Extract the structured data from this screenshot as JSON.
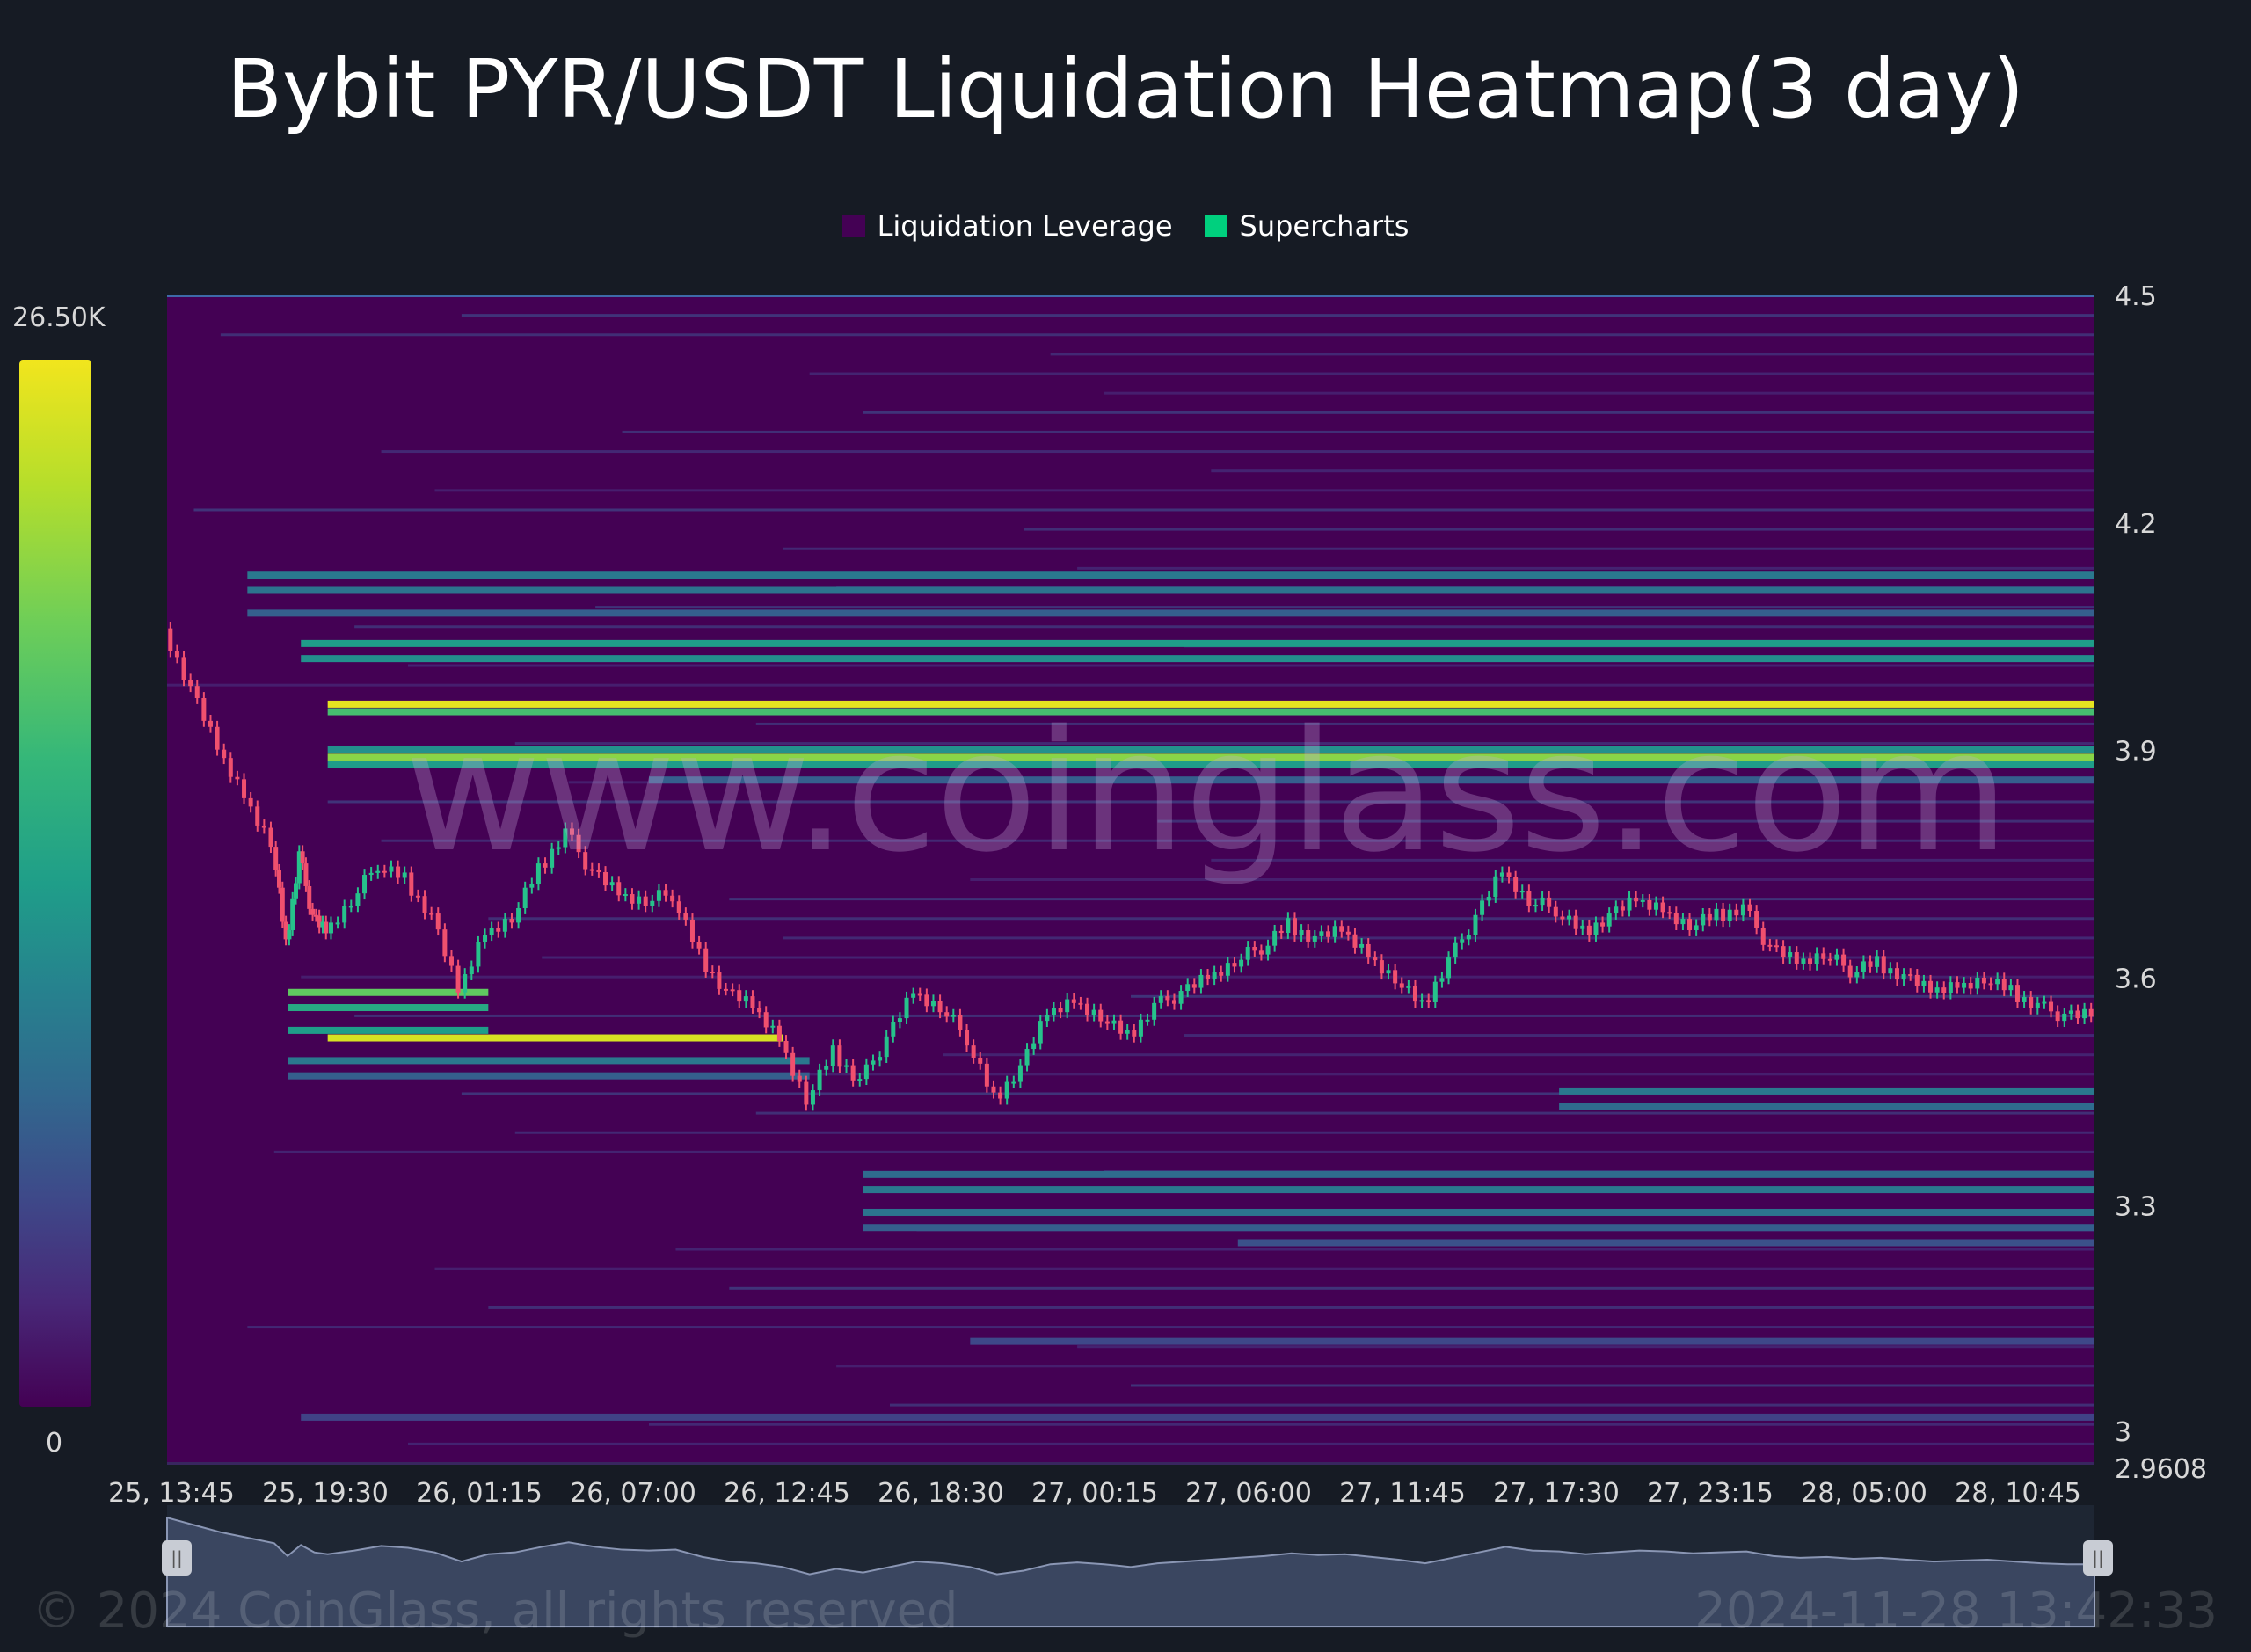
{
  "title": "Bybit PYR/USDT Liquidation Heatmap(3 day)",
  "legend": [
    {
      "label": "Liquidation Leverage",
      "color": "#440154"
    },
    {
      "label": "Supercharts",
      "color": "#00d07e"
    }
  ],
  "color_scale": {
    "max_label": "26.50K",
    "min_label": "0",
    "colormap": "viridis"
  },
  "watermark": "www.coinglass.com",
  "footer": {
    "copyright": "© 2024 CoinGlass, all rights reserved",
    "timestamp": "2024-11-28 13:42:33"
  },
  "chart_data": {
    "type": "heatmap",
    "title": "Bybit PYR/USDT Liquidation Heatmap(3 day)",
    "ylim": [
      2.9608,
      4.5
    ],
    "y_ticks": [
      "4.5",
      "4.2",
      "3.9",
      "3.6",
      "3.3",
      "3",
      "2.9608"
    ],
    "x_ticks": [
      "25, 13:45",
      "25, 19:30",
      "26, 01:15",
      "26, 07:00",
      "26, 12:45",
      "26, 18:30",
      "27, 00:15",
      "27, 06:00",
      "27, 11:45",
      "27, 17:30",
      "27, 23:15",
      "28, 05:00",
      "28, 10:45"
    ],
    "x_range_hours": [
      0,
      72
    ],
    "price_path": [
      [
        0,
        4.06
      ],
      [
        1,
        3.98
      ],
      [
        2,
        3.9
      ],
      [
        3,
        3.84
      ],
      [
        4,
        3.78
      ],
      [
        4.5,
        3.64
      ],
      [
        5,
        3.76
      ],
      [
        5.5,
        3.68
      ],
      [
        6,
        3.66
      ],
      [
        7,
        3.7
      ],
      [
        8,
        3.75
      ],
      [
        9,
        3.73
      ],
      [
        10,
        3.68
      ],
      [
        11,
        3.58
      ],
      [
        12,
        3.66
      ],
      [
        13,
        3.68
      ],
      [
        14,
        3.74
      ],
      [
        15,
        3.79
      ],
      [
        16,
        3.74
      ],
      [
        17,
        3.71
      ],
      [
        18,
        3.7
      ],
      [
        19,
        3.71
      ],
      [
        20,
        3.63
      ],
      [
        21,
        3.58
      ],
      [
        22,
        3.56
      ],
      [
        23,
        3.52
      ],
      [
        24,
        3.44
      ],
      [
        25,
        3.5
      ],
      [
        26,
        3.46
      ],
      [
        27,
        3.52
      ],
      [
        28,
        3.58
      ],
      [
        29,
        3.56
      ],
      [
        30,
        3.52
      ],
      [
        31,
        3.44
      ],
      [
        32,
        3.48
      ],
      [
        33,
        3.55
      ],
      [
        34,
        3.57
      ],
      [
        35,
        3.55
      ],
      [
        36,
        3.52
      ],
      [
        37,
        3.56
      ],
      [
        38,
        3.58
      ],
      [
        39,
        3.6
      ],
      [
        40,
        3.62
      ],
      [
        41,
        3.64
      ],
      [
        42,
        3.67
      ],
      [
        43,
        3.65
      ],
      [
        44,
        3.66
      ],
      [
        45,
        3.63
      ],
      [
        46,
        3.6
      ],
      [
        47,
        3.56
      ],
      [
        48,
        3.62
      ],
      [
        49,
        3.68
      ],
      [
        50,
        3.74
      ],
      [
        51,
        3.7
      ],
      [
        52,
        3.69
      ],
      [
        53,
        3.66
      ],
      [
        54,
        3.68
      ],
      [
        55,
        3.7
      ],
      [
        56,
        3.69
      ],
      [
        57,
        3.67
      ],
      [
        58,
        3.68
      ],
      [
        59,
        3.69
      ],
      [
        60,
        3.64
      ],
      [
        61,
        3.62
      ],
      [
        62,
        3.63
      ],
      [
        63,
        3.61
      ],
      [
        64,
        3.62
      ],
      [
        65,
        3.6
      ],
      [
        66,
        3.58
      ],
      [
        67,
        3.59
      ],
      [
        68,
        3.6
      ],
      [
        69,
        3.58
      ],
      [
        70,
        3.56
      ],
      [
        71,
        3.55
      ],
      [
        72,
        3.55
      ]
    ],
    "liquidation_bands": [
      {
        "price": 4.13,
        "start_hour": 3,
        "intensity": 0.4
      },
      {
        "price": 4.11,
        "start_hour": 3,
        "intensity": 0.38
      },
      {
        "price": 4.08,
        "start_hour": 3,
        "intensity": 0.3
      },
      {
        "price": 4.04,
        "start_hour": 5,
        "intensity": 0.55
      },
      {
        "price": 4.02,
        "start_hour": 5,
        "intensity": 0.5
      },
      {
        "price": 3.96,
        "start_hour": 6,
        "intensity": 0.98
      },
      {
        "price": 3.95,
        "start_hour": 6,
        "intensity": 0.7
      },
      {
        "price": 3.9,
        "start_hour": 6,
        "intensity": 0.5
      },
      {
        "price": 3.89,
        "start_hour": 6,
        "intensity": 0.82
      },
      {
        "price": 3.88,
        "start_hour": 6,
        "intensity": 0.55
      },
      {
        "price": 3.86,
        "start_hour": 18,
        "intensity": 0.3
      },
      {
        "price": 3.58,
        "start_hour": 4.5,
        "end_hour": 12,
        "intensity": 0.75
      },
      {
        "price": 3.56,
        "start_hour": 4.5,
        "end_hour": 12,
        "intensity": 0.6
      },
      {
        "price": 3.52,
        "start_hour": 6,
        "end_hour": 23,
        "intensity": 0.95
      },
      {
        "price": 3.53,
        "start_hour": 4.5,
        "end_hour": 12,
        "intensity": 0.55
      },
      {
        "price": 3.49,
        "start_hour": 4.5,
        "end_hour": 24,
        "intensity": 0.4
      },
      {
        "price": 3.47,
        "start_hour": 4.5,
        "end_hour": 24,
        "intensity": 0.3
      },
      {
        "price": 3.45,
        "start_hour": 52,
        "intensity": 0.4
      },
      {
        "price": 3.43,
        "start_hour": 52,
        "intensity": 0.35
      },
      {
        "price": 3.34,
        "start_hour": 26,
        "intensity": 0.35
      },
      {
        "price": 3.32,
        "start_hour": 26,
        "intensity": 0.4
      },
      {
        "price": 3.29,
        "start_hour": 26,
        "intensity": 0.38
      },
      {
        "price": 3.27,
        "start_hour": 26,
        "intensity": 0.3
      },
      {
        "price": 3.25,
        "start_hour": 40,
        "intensity": 0.25
      },
      {
        "price": 3.12,
        "start_hour": 30,
        "intensity": 0.22
      },
      {
        "price": 3.02,
        "start_hour": 5,
        "intensity": 0.2
      }
    ]
  }
}
